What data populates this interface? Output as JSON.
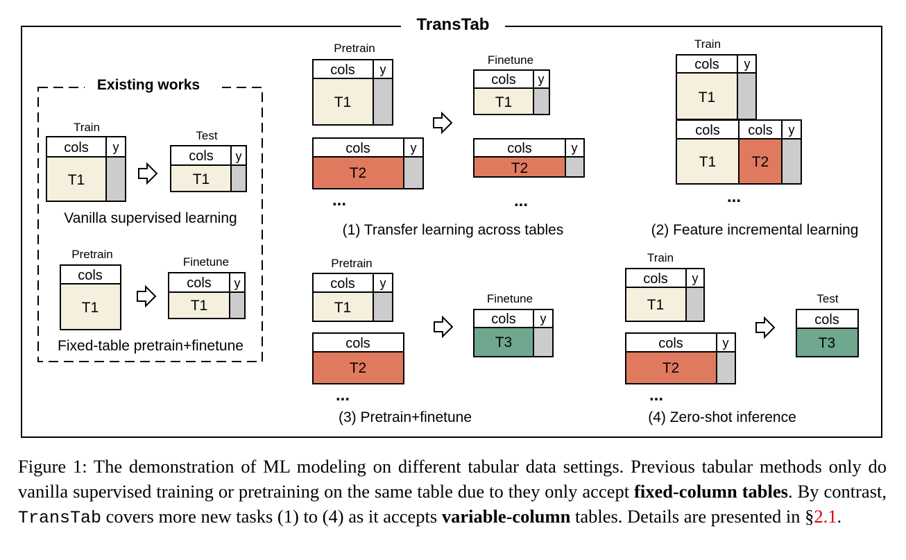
{
  "diagram": {
    "title": "TransTab",
    "existing": {
      "heading": "Existing works",
      "vanilla": {
        "train_label": "Train",
        "test_label": "Test",
        "cols": "cols",
        "y": "y",
        "table": "T1",
        "caption": "Vanilla supervised learning"
      },
      "fixed": {
        "pretrain_label": "Pretrain",
        "finetune_label": "Finetune",
        "cols": "cols",
        "y": "y",
        "table": "T1",
        "caption": "Fixed-table pretrain+finetune"
      }
    },
    "transfer": {
      "pretrain_label": "Pretrain",
      "finetune_label": "Finetune",
      "cols": "cols",
      "y": "y",
      "t1": "T1",
      "t2": "T2",
      "ellipsis": "...",
      "caption": "(1) Transfer learning across tables"
    },
    "incremental": {
      "train_label": "Train",
      "cols": "cols",
      "y": "y",
      "t1": "T1",
      "t2": "T2",
      "ellipsis": "...",
      "caption": "(2) Feature incremental learning"
    },
    "pretrain_finetune": {
      "pretrain_label": "Pretrain",
      "finetune_label": "Finetune",
      "cols": "cols",
      "y": "y",
      "t1": "T1",
      "t2": "T2",
      "t3": "T3",
      "ellipsis": "...",
      "caption": "(3) Pretrain+finetune"
    },
    "zeroshot": {
      "train_label": "Train",
      "test_label": "Test",
      "cols": "cols",
      "y": "y",
      "t1": "T1",
      "t2": "T2",
      "t3": "T3",
      "ellipsis": "...",
      "caption": "(4) Zero-shot inference"
    },
    "colors": {
      "t1_fill": "#f5f0dd",
      "t2_fill": "#e07a5f",
      "t3_fill": "#6fa88f",
      "y_fill": "#cccccc"
    }
  },
  "caption": {
    "lead": "Figure 1: The demonstration of ML modeling on different tabular data settings. Previous tabular methods only do vanilla supervised training or pretraining on the same table due to they only accept ",
    "bold1": "fixed-column tables",
    "mid1": ". By contrast, ",
    "code": "TransTab",
    "mid2": " covers more new tasks (1) to (4) as it accepts ",
    "bold2": "variable-column",
    "mid3": " tables. Details are presented in ",
    "section_symbol": "§",
    "section_ref": "2.1",
    "end": "."
  }
}
